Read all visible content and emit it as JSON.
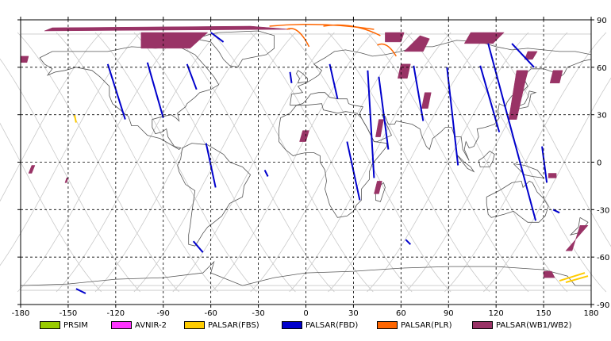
{
  "map": {
    "lon_range": [
      -180,
      180
    ],
    "lat_range": [
      -90,
      90
    ],
    "lon_ticks": [
      "-180",
      "-150",
      "-120",
      "-90",
      "-60",
      "-30",
      "0",
      "30",
      "60",
      "90",
      "120",
      "150",
      "180"
    ],
    "lat_ticks": [
      "90",
      "60",
      "30",
      "0",
      "-30",
      "-60",
      "-90"
    ],
    "grid": "dashed",
    "colors": {
      "background": "#ffffff",
      "coastline": "#555555",
      "orbit_track": "#c8c8c8",
      "frame": "#000000"
    }
  },
  "legend": [
    {
      "label": "PRSIM",
      "color": "#99cc00"
    },
    {
      "label": "AVNIR-2",
      "color": "#ff33ff"
    },
    {
      "label": "PALSAR(FBS)",
      "color": "#ffcc00"
    },
    {
      "label": "PALSAR(FBD)",
      "color": "#0000cc"
    },
    {
      "label": "PALSAR(PLR)",
      "color": "#ff6600"
    },
    {
      "label": "PALSAR(WB1/WB2)",
      "color": "#993366"
    }
  ],
  "footprints": {
    "FBD": [
      [
        [
          -125,
          62
        ],
        [
          -114,
          27
        ]
      ],
      [
        [
          -100,
          63
        ],
        [
          -90,
          28
        ]
      ],
      [
        [
          -75,
          62
        ],
        [
          -69,
          46
        ]
      ],
      [
        [
          -63,
          12
        ],
        [
          -57,
          -16
        ]
      ],
      [
        [
          -71,
          -50
        ],
        [
          -65,
          -57
        ]
      ],
      [
        [
          -60,
          82
        ],
        [
          -52,
          76
        ]
      ],
      [
        [
          -26,
          -5
        ],
        [
          -24,
          -9
        ]
      ],
      [
        [
          -10,
          57
        ],
        [
          -9,
          50
        ]
      ],
      [
        [
          15,
          62
        ],
        [
          20,
          40
        ]
      ],
      [
        [
          26,
          13
        ],
        [
          34,
          -24
        ]
      ],
      [
        [
          39,
          58
        ],
        [
          43,
          -10
        ]
      ],
      [
        [
          46,
          54
        ],
        [
          52,
          8
        ]
      ],
      [
        [
          68,
          61
        ],
        [
          74,
          26
        ]
      ],
      [
        [
          89,
          60
        ],
        [
          96,
          -2
        ]
      ],
      [
        [
          110,
          61
        ],
        [
          122,
          19
        ]
      ],
      [
        [
          115,
          75
        ],
        [
          145,
          -37
        ]
      ],
      [
        [
          130,
          75
        ],
        [
          144,
          60
        ]
      ],
      [
        [
          149,
          10
        ],
        [
          152,
          -13
        ]
      ],
      [
        [
          156,
          -30
        ],
        [
          160,
          -32
        ]
      ],
      [
        [
          63,
          -49
        ],
        [
          66,
          -52
        ]
      ],
      [
        [
          -145,
          -80
        ],
        [
          -139,
          -83
        ]
      ]
    ],
    "PLR": [
      [
        [
          -23,
          86
        ],
        [
          43,
          84
        ]
      ],
      [
        [
          -12,
          84
        ],
        [
          2,
          73
        ]
      ],
      [
        [
          11,
          86
        ],
        [
          47,
          80
        ]
      ],
      [
        [
          45,
          74
        ],
        [
          57,
          67
        ]
      ]
    ],
    "FBS": [
      [
        [
          -146,
          30
        ],
        [
          -145,
          25
        ]
      ],
      [
        [
          160,
          -75
        ],
        [
          176,
          -70
        ]
      ],
      [
        [
          164,
          -76
        ],
        [
          178,
          -72
        ]
      ]
    ],
    "WB": [
      [
        [
          [
            -165,
            83
          ],
          [
            -10,
            84
          ],
          [
            -35,
            86
          ],
          [
            -160,
            85
          ]
        ]
      ],
      [
        [
          [
            -104,
            82
          ],
          [
            -62,
            82
          ],
          [
            -73,
            72
          ],
          [
            -104,
            72
          ]
        ]
      ],
      [
        [
          [
            -180,
            67
          ],
          [
            -175,
            67
          ],
          [
            -176,
            63
          ],
          [
            -180,
            63
          ]
        ]
      ],
      [
        [
          [
            -173,
            -2
          ],
          [
            -171,
            -2
          ],
          [
            -173,
            -7
          ],
          [
            -175,
            -7
          ]
        ]
      ],
      [
        [
          [
            -151,
            -10
          ],
          [
            -150,
            -10
          ],
          [
            -151,
            -13
          ],
          [
            -152,
            -13
          ]
        ]
      ],
      [
        [
          [
            -2,
            20
          ],
          [
            2,
            20
          ],
          [
            0,
            13
          ],
          [
            -4,
            13
          ]
        ]
      ],
      [
        [
          [
            62,
            82
          ],
          [
            50,
            82
          ],
          [
            50,
            76
          ],
          [
            60,
            76
          ]
        ]
      ],
      [
        [
          [
            72,
            80
          ],
          [
            78,
            78
          ],
          [
            74,
            70
          ],
          [
            62,
            70
          ]
        ]
      ],
      [
        [
          [
            104,
            82
          ],
          [
            125,
            82
          ],
          [
            118,
            75
          ],
          [
            100,
            75
          ]
        ]
      ],
      [
        [
          [
            46,
            27
          ],
          [
            49,
            27
          ],
          [
            47,
            16
          ],
          [
            44,
            16
          ]
        ]
      ],
      [
        [
          [
            45,
            -12
          ],
          [
            48,
            -12
          ],
          [
            46,
            -20
          ],
          [
            43,
            -20
          ]
        ]
      ],
      [
        [
          [
            60,
            62
          ],
          [
            66,
            62
          ],
          [
            64,
            53
          ],
          [
            58,
            53
          ]
        ]
      ],
      [
        [
          [
            75,
            44
          ],
          [
            79,
            44
          ],
          [
            77,
            34
          ],
          [
            73,
            34
          ]
        ]
      ],
      [
        [
          [
            133,
            58
          ],
          [
            140,
            58
          ],
          [
            133,
            27
          ],
          [
            128,
            27
          ]
        ]
      ],
      [
        [
          [
            137,
            57
          ],
          [
            140,
            57
          ],
          [
            138,
            50
          ],
          [
            135,
            50
          ]
        ]
      ],
      [
        [
          [
            156,
            58
          ],
          [
            162,
            58
          ],
          [
            160,
            50
          ],
          [
            154,
            50
          ]
        ]
      ],
      [
        [
          [
            140,
            70
          ],
          [
            146,
            70
          ],
          [
            143,
            65
          ],
          [
            138,
            65
          ]
        ]
      ],
      [
        [
          [
            153,
            -10
          ],
          [
            158,
            -10
          ],
          [
            158,
            -7
          ],
          [
            153,
            -7
          ]
        ]
      ],
      [
        [
          [
            173,
            -40
          ],
          [
            178,
            -40
          ],
          [
            164,
            -56
          ],
          [
            168,
            -56
          ]
        ]
      ],
      [
        [
          [
            150,
            -73
          ],
          [
            157,
            -73
          ],
          [
            155,
            -69
          ],
          [
            150,
            -69
          ]
        ]
      ]
    ]
  }
}
